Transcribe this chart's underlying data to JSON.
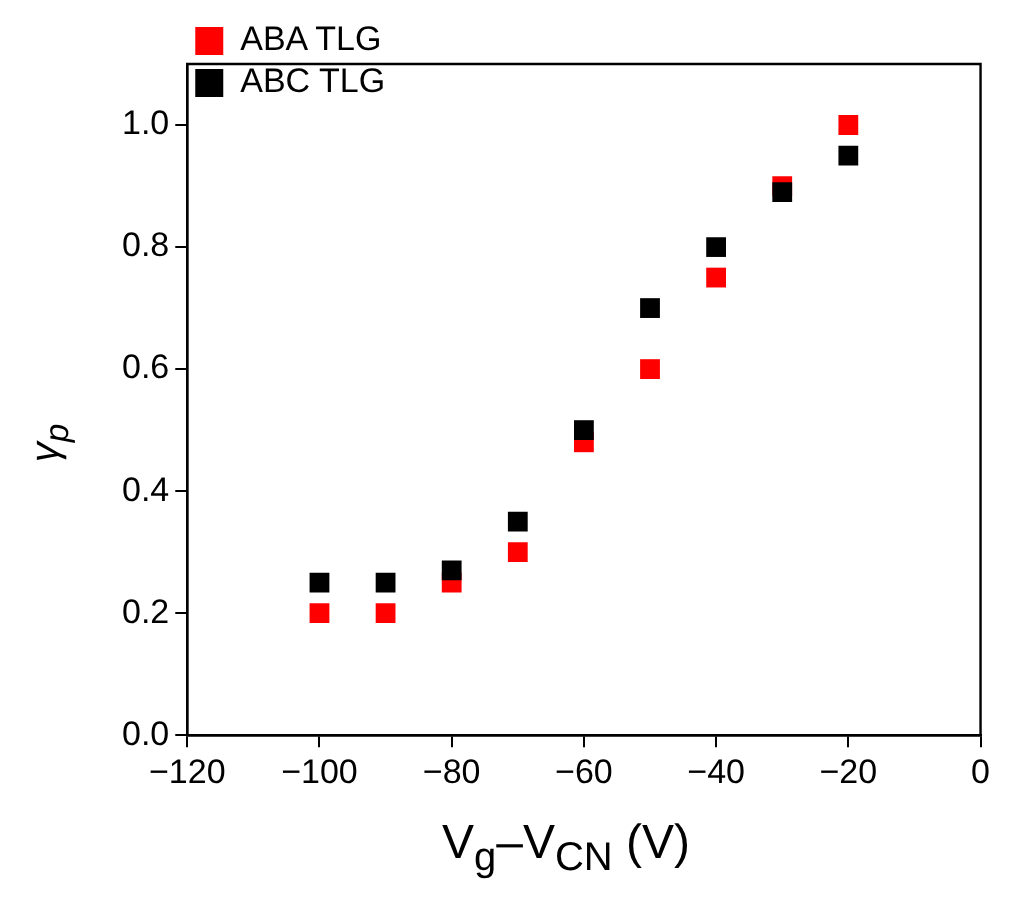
{
  "chart_data": {
    "type": "scatter",
    "xlabel": "V$_{g}$–V$_{CN}$ (V)",
    "ylabel": "γ$_{p}$",
    "x": [
      -100,
      -90,
      -80,
      -70,
      -60,
      -50,
      -40,
      -30,
      -20
    ],
    "series": [
      {
        "name": "ABA TLG",
        "color": "#ff0000",
        "values": [
          0.2,
          0.2,
          0.25,
          0.3,
          0.48,
          0.6,
          0.75,
          0.9,
          1.0
        ]
      },
      {
        "name": "ABC TLG",
        "color": "#000000",
        "values": [
          0.25,
          0.25,
          0.27,
          0.35,
          0.5,
          0.7,
          0.8,
          0.89,
          0.95
        ]
      }
    ],
    "xlim": [
      -120,
      0
    ],
    "xticks": [
      {
        "value": -120,
        "label": "−120"
      },
      {
        "value": -100,
        "label": "−100"
      },
      {
        "value": -80,
        "label": "−80"
      },
      {
        "value": -60,
        "label": "−60"
      },
      {
        "value": -40,
        "label": "−40"
      },
      {
        "value": -20,
        "label": "−20"
      },
      0
    ],
    "ylim": [
      0,
      1.1
    ],
    "yticks": [
      {
        "value": 0,
        "label": "0.0"
      },
      {
        "value": 0.2,
        "label": "0.2"
      },
      {
        "value": 0.4,
        "label": "0.4"
      },
      {
        "value": 0.6,
        "label": "0.6"
      },
      {
        "value": 0.8,
        "label": "0.8"
      },
      {
        "value": 1,
        "label": "1.0"
      }
    ],
    "marker": "square",
    "legend": "top left",
    "grid": false
  }
}
